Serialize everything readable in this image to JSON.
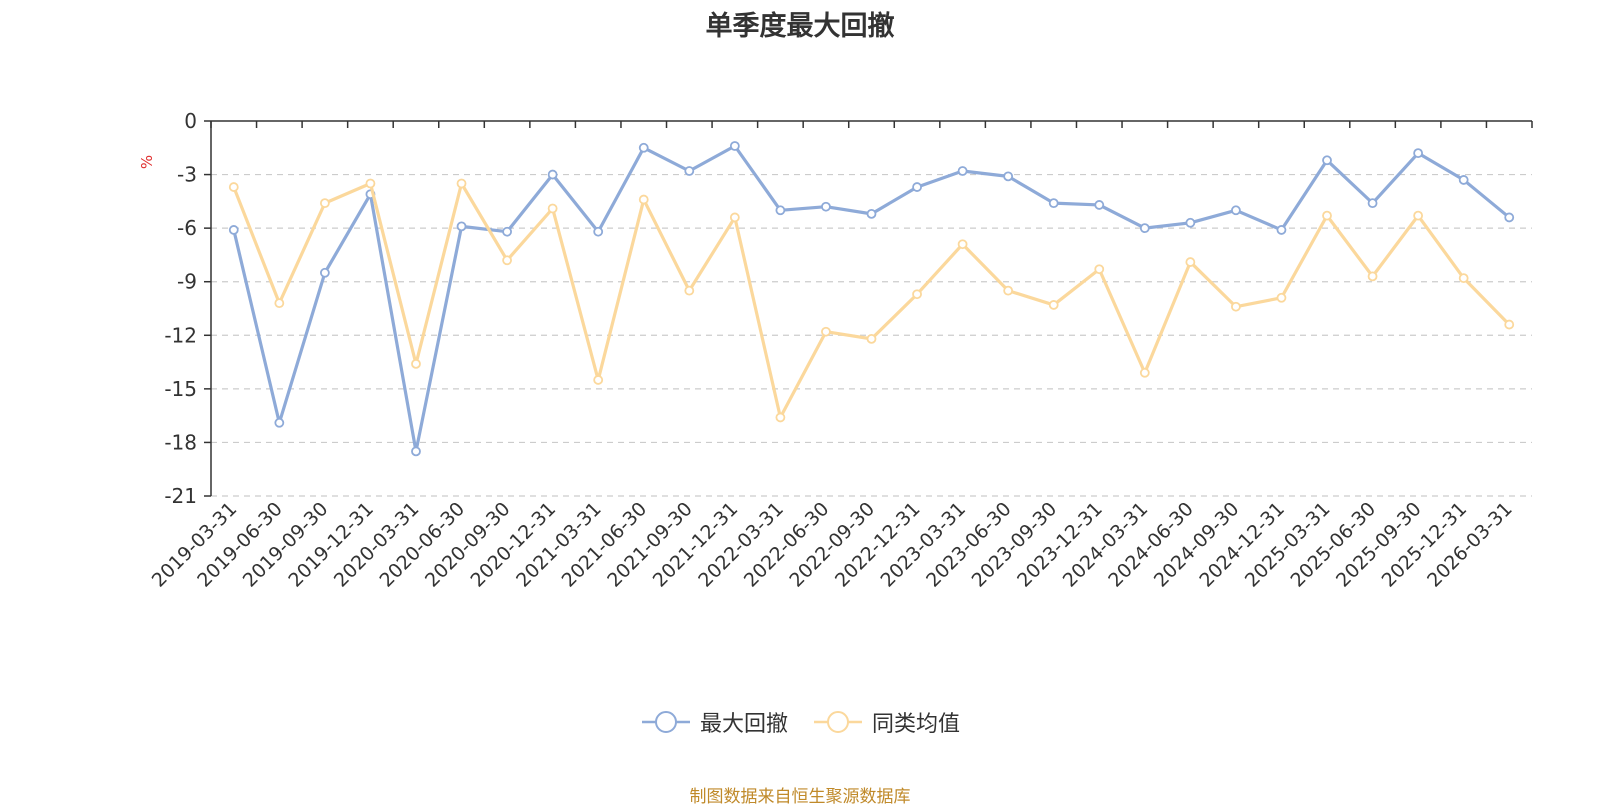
{
  "chart_data": {
    "type": "line",
    "title": "单季度最大回撤",
    "ylabel": "%",
    "ylim": [
      -21,
      0
    ],
    "yticks": [
      0,
      -3,
      -6,
      -9,
      -12,
      -15,
      -18,
      -21
    ],
    "grid": true,
    "legend_position": "bottom",
    "categories": [
      "2019-03-31",
      "2019-06-30",
      "2019-09-30",
      "2019-12-31",
      "2020-03-31",
      "2020-06-30",
      "2020-09-30",
      "2020-12-31",
      "2021-03-31",
      "2021-06-30",
      "2021-09-30",
      "2021-12-31",
      "2022-03-31",
      "2022-06-30",
      "2022-09-30",
      "2022-12-31",
      "2023-03-31",
      "2023-06-30",
      "2023-09-30",
      "2023-12-31",
      "2024-03-31",
      "2024-06-30",
      "2024-09-30",
      "2024-12-31",
      "2025-03-31",
      "2025-06-30",
      "2025-09-30",
      "2025-12-31",
      "2026-03-31"
    ],
    "series": [
      {
        "name": "最大回撤",
        "color": "#8eaad8",
        "values": [
          -6.1,
          -16.9,
          -8.5,
          -4.1,
          -18.5,
          -5.9,
          -6.2,
          -3.0,
          -6.2,
          -1.5,
          -2.8,
          -1.4,
          -5.0,
          -4.8,
          -5.2,
          -3.7,
          -2.8,
          -3.1,
          -4.6,
          -4.7,
          -6.0,
          -5.7,
          -5.0,
          -6.1,
          -2.2,
          -4.6,
          -1.8,
          -3.3,
          -5.4
        ]
      },
      {
        "name": "同类均值",
        "color": "#fbd89c",
        "values": [
          -3.7,
          -10.2,
          -4.6,
          -3.5,
          -13.6,
          -3.5,
          -7.8,
          -4.9,
          -14.5,
          -4.4,
          -9.5,
          -5.4,
          -16.6,
          -11.8,
          -12.2,
          -9.7,
          -6.9,
          -9.5,
          -10.3,
          -8.3,
          -14.1,
          -7.9,
          -10.4,
          -9.9,
          -5.3,
          -8.7,
          -5.3,
          -8.8,
          -11.4
        ]
      }
    ]
  },
  "footer": {
    "source": "制图数据来自恒生聚源数据库"
  }
}
